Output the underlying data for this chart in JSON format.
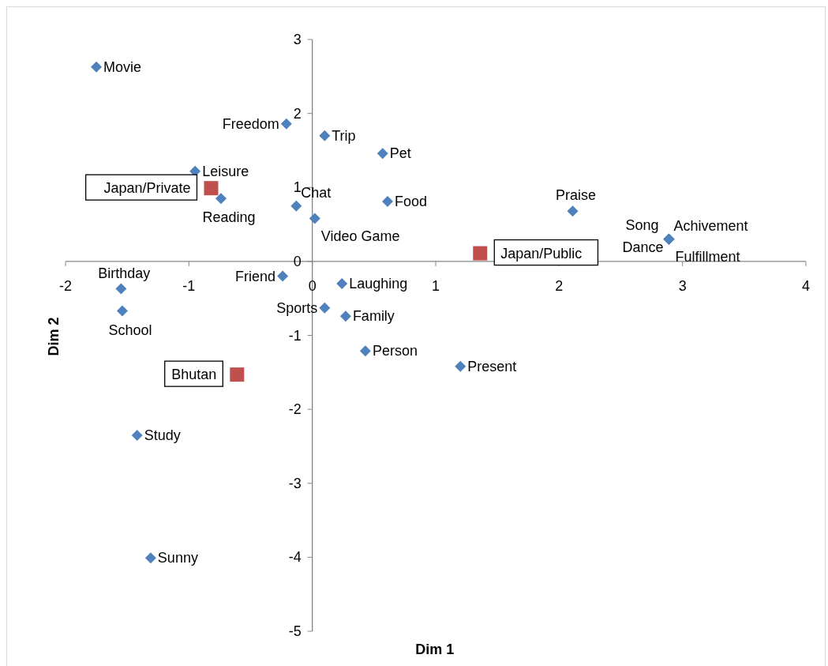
{
  "chart_data": {
    "type": "scatter",
    "xlabel": "Dim 1",
    "ylabel": "Dim 2",
    "xlim": [
      -2,
      4
    ],
    "xticks": [
      -2,
      -1,
      0,
      1,
      2,
      3,
      4
    ],
    "ylim": [
      -5,
      3
    ],
    "yticks": [
      -5,
      -4,
      -3,
      -2,
      -1,
      0,
      1,
      2,
      3
    ],
    "series": [
      {
        "color": "#4f81bd",
        "marker": "diamond",
        "x": [
          -1.75,
          -0.21,
          0.1,
          0.57,
          -0.95,
          -0.74,
          -0.13,
          0.61,
          0.02,
          2.11,
          2.89,
          2.89,
          2.89,
          2.89,
          -0.24,
          0.24,
          -1.55,
          -1.54,
          0.1,
          0.27,
          0.43,
          1.2,
          -1.42,
          -1.31
        ],
        "values": [
          2.63,
          1.86,
          1.7,
          1.46,
          1.22,
          0.85,
          0.75,
          0.81,
          0.58,
          0.68,
          0.3,
          0.3,
          0.3,
          0.3,
          -0.2,
          -0.3,
          -0.37,
          -0.67,
          -0.63,
          -0.74,
          -1.21,
          -1.42,
          -2.35,
          -4.01
        ],
        "value_labels": [
          "Movie",
          "Freedom",
          "Trip",
          "Pet",
          "Leisure",
          "Reading",
          "Chat",
          "Food",
          "Video Game",
          "Praise",
          "Song",
          "Achivement",
          "Dance",
          "Fulfillment",
          "Friend",
          "Laughing",
          "Birthday",
          "School",
          "Sports",
          "Family",
          "Person",
          "Present",
          "Study",
          "Sunny"
        ]
      },
      {
        "color": "#c0504d",
        "marker": "square",
        "x": [
          -0.82,
          1.36,
          -0.61
        ],
        "values": [
          0.99,
          0.11,
          -1.53
        ],
        "value_labels": [
          "Japan/Private",
          "Japan/Public",
          "Bhutan"
        ]
      }
    ]
  }
}
